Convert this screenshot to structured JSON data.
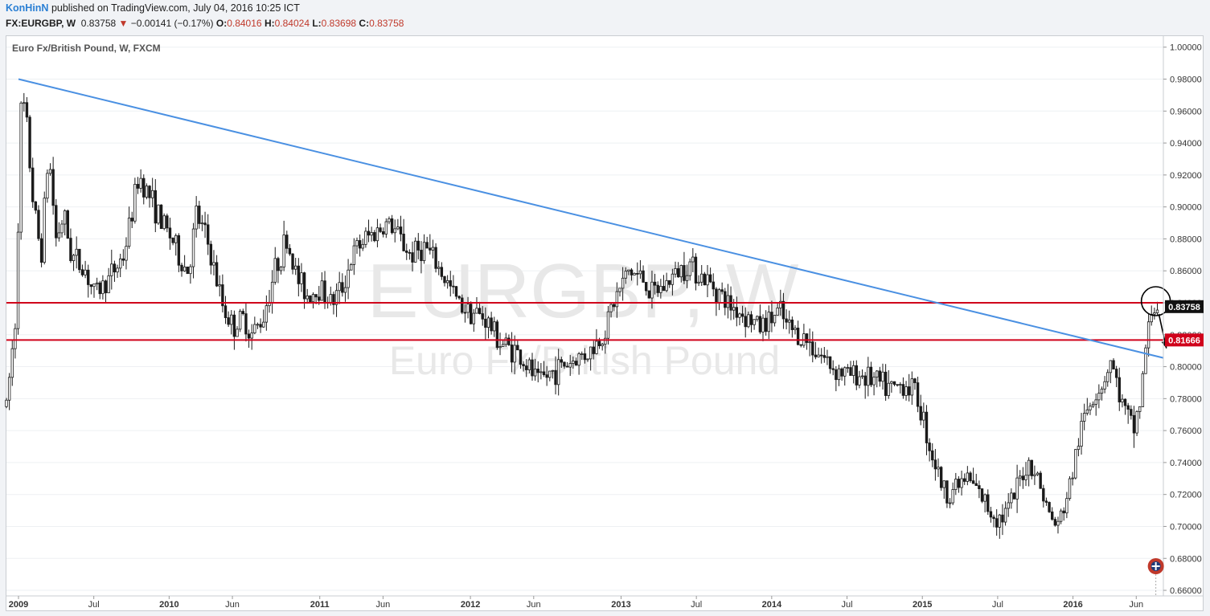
{
  "header": {
    "publisher": "KonHinN",
    "published_text": "published on TradingView.com, July 04, 2016 10:25 ICT",
    "symbol": "FX:EURGBP, W",
    "last": "0.83758",
    "change_arrow": "▼",
    "change": "−0.00141 (−0.17%)",
    "open_label": "O:",
    "open": "0.84016",
    "high_label": "H:",
    "high": "0.84024",
    "low_label": "L:",
    "low": "0.83698",
    "close_label": "C:",
    "close": "0.83758"
  },
  "chart_data": {
    "type": "candlestick",
    "legend": "Euro Fx/British Pound, W, FXCM",
    "watermark": {
      "symbol": "EURGBP, W",
      "name": "Euro Fx/British Pound"
    },
    "y_ticks": [
      "1.00000",
      "0.98000",
      "0.96000",
      "0.94000",
      "0.92000",
      "0.90000",
      "0.88000",
      "0.86000",
      "0.84000",
      "0.82000",
      "0.80000",
      "0.78000",
      "0.76000",
      "0.74000",
      "0.72000",
      "0.70000",
      "0.68000",
      "0.66000"
    ],
    "ylim": [
      0.6565,
      1.0069
    ],
    "x_ticks": [
      {
        "label": "2009",
        "t": 2009.0,
        "bold": true
      },
      {
        "label": "Jul",
        "t": 2009.5,
        "bold": false
      },
      {
        "label": "2010",
        "t": 2010.0,
        "bold": true
      },
      {
        "label": "Jun",
        "t": 2010.42,
        "bold": false
      },
      {
        "label": "2011",
        "t": 2011.0,
        "bold": true
      },
      {
        "label": "Jun",
        "t": 2011.42,
        "bold": false
      },
      {
        "label": "2012",
        "t": 2012.0,
        "bold": true
      },
      {
        "label": "Jun",
        "t": 2012.42,
        "bold": false
      },
      {
        "label": "2013",
        "t": 2013.0,
        "bold": true
      },
      {
        "label": "Jul",
        "t": 2013.5,
        "bold": false
      },
      {
        "label": "2014",
        "t": 2014.0,
        "bold": true
      },
      {
        "label": "Jul",
        "t": 2014.5,
        "bold": false
      },
      {
        "label": "2015",
        "t": 2015.0,
        "bold": true
      },
      {
        "label": "Jul",
        "t": 2015.5,
        "bold": false
      },
      {
        "label": "2016",
        "t": 2016.0,
        "bold": true
      },
      {
        "label": "Jun",
        "t": 2016.42,
        "bold": false
      }
    ],
    "xlim": [
      2008.92,
      2016.6
    ],
    "path": [
      [
        2008.92,
        0.775
      ],
      [
        2008.98,
        0.83
      ],
      [
        2009.0,
        0.9
      ],
      [
        2009.02,
        0.97
      ],
      [
        2009.05,
        0.955
      ],
      [
        2009.1,
        0.9
      ],
      [
        2009.15,
        0.87
      ],
      [
        2009.2,
        0.935
      ],
      [
        2009.25,
        0.88
      ],
      [
        2009.3,
        0.895
      ],
      [
        2009.35,
        0.87
      ],
      [
        2009.45,
        0.86
      ],
      [
        2009.5,
        0.845
      ],
      [
        2009.6,
        0.855
      ],
      [
        2009.7,
        0.87
      ],
      [
        2009.8,
        0.92
      ],
      [
        2009.88,
        0.905
      ],
      [
        2009.95,
        0.89
      ],
      [
        2010.02,
        0.88
      ],
      [
        2010.08,
        0.865
      ],
      [
        2010.13,
        0.86
      ],
      [
        2010.18,
        0.895
      ],
      [
        2010.25,
        0.88
      ],
      [
        2010.35,
        0.84
      ],
      [
        2010.42,
        0.825
      ],
      [
        2010.5,
        0.83
      ],
      [
        2010.55,
        0.82
      ],
      [
        2010.62,
        0.83
      ],
      [
        2010.7,
        0.86
      ],
      [
        2010.78,
        0.88
      ],
      [
        2010.85,
        0.855
      ],
      [
        2010.92,
        0.845
      ],
      [
        2011.0,
        0.85
      ],
      [
        2011.08,
        0.84
      ],
      [
        2011.15,
        0.85
      ],
      [
        2011.22,
        0.87
      ],
      [
        2011.3,
        0.88
      ],
      [
        2011.38,
        0.885
      ],
      [
        2011.45,
        0.89
      ],
      [
        2011.5,
        0.885
      ],
      [
        2011.6,
        0.87
      ],
      [
        2011.7,
        0.875
      ],
      [
        2011.8,
        0.86
      ],
      [
        2011.92,
        0.84
      ],
      [
        2012.0,
        0.835
      ],
      [
        2012.1,
        0.83
      ],
      [
        2012.2,
        0.815
      ],
      [
        2012.3,
        0.81
      ],
      [
        2012.38,
        0.8
      ],
      [
        2012.45,
        0.79
      ],
      [
        2012.52,
        0.795
      ],
      [
        2012.6,
        0.8
      ],
      [
        2012.7,
        0.805
      ],
      [
        2012.8,
        0.81
      ],
      [
        2012.88,
        0.82
      ],
      [
        2012.95,
        0.84
      ],
      [
        2013.05,
        0.86
      ],
      [
        2013.15,
        0.855
      ],
      [
        2013.2,
        0.845
      ],
      [
        2013.28,
        0.85
      ],
      [
        2013.38,
        0.86
      ],
      [
        2013.45,
        0.865
      ],
      [
        2013.55,
        0.855
      ],
      [
        2013.62,
        0.85
      ],
      [
        2013.7,
        0.84
      ],
      [
        2013.78,
        0.835
      ],
      [
        2013.85,
        0.83
      ],
      [
        2013.92,
        0.825
      ],
      [
        2014.0,
        0.83
      ],
      [
        2014.05,
        0.835
      ],
      [
        2014.1,
        0.825
      ],
      [
        2014.18,
        0.82
      ],
      [
        2014.25,
        0.815
      ],
      [
        2014.3,
        0.81
      ],
      [
        2014.4,
        0.8
      ],
      [
        2014.5,
        0.795
      ],
      [
        2014.6,
        0.795
      ],
      [
        2014.7,
        0.79
      ],
      [
        2014.8,
        0.785
      ],
      [
        2014.88,
        0.79
      ],
      [
        2014.95,
        0.785
      ],
      [
        2015.0,
        0.77
      ],
      [
        2015.05,
        0.75
      ],
      [
        2015.1,
        0.735
      ],
      [
        2015.15,
        0.72
      ],
      [
        2015.22,
        0.725
      ],
      [
        2015.3,
        0.73
      ],
      [
        2015.38,
        0.72
      ],
      [
        2015.45,
        0.71
      ],
      [
        2015.52,
        0.705
      ],
      [
        2015.6,
        0.715
      ],
      [
        2015.65,
        0.73
      ],
      [
        2015.7,
        0.74
      ],
      [
        2015.75,
        0.735
      ],
      [
        2015.8,
        0.72
      ],
      [
        2015.85,
        0.705
      ],
      [
        2015.9,
        0.7
      ],
      [
        2015.95,
        0.715
      ],
      [
        2016.0,
        0.735
      ],
      [
        2016.05,
        0.76
      ],
      [
        2016.1,
        0.775
      ],
      [
        2016.15,
        0.785
      ],
      [
        2016.2,
        0.79
      ],
      [
        2016.25,
        0.805
      ],
      [
        2016.3,
        0.785
      ],
      [
        2016.35,
        0.77
      ],
      [
        2016.4,
        0.76
      ],
      [
        2016.45,
        0.78
      ],
      [
        2016.48,
        0.81
      ],
      [
        2016.52,
        0.835
      ],
      [
        2016.56,
        0.838
      ]
    ],
    "trendline": {
      "start": [
        2009.0,
        0.98
      ],
      "end": [
        2016.6,
        0.8055
      ]
    },
    "levels": [
      0.84,
      0.8167
    ],
    "last_label": "0.83758",
    "level_label": "0.81666",
    "circle_at": [
      2016.55,
      0.841
    ],
    "arrow": {
      "from": [
        2016.57,
        0.833
      ],
      "to": [
        2016.62,
        0.8115
      ]
    },
    "colors": {
      "up": "#ffffff",
      "down": "#1a1a1a",
      "wick": "#1a1a1a",
      "trend": "#4a90e2",
      "level": "#d0021b",
      "grid": "#eef0f3",
      "axis_text": "#333333",
      "watermark": "#e8e8e8"
    }
  }
}
